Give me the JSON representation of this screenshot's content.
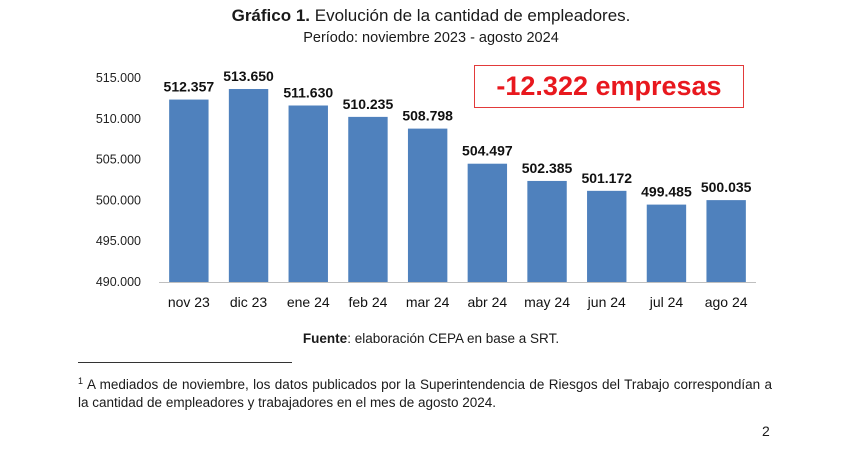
{
  "header": {
    "title_bold": "Gráfico 1.",
    "title_rest": " Evolución de la cantidad de empleadores.",
    "subtitle": "Período: noviembre 2023 - agosto 2024"
  },
  "callout": {
    "text": "-12.322 empresas",
    "color": "#e8181e"
  },
  "chart_data": {
    "type": "bar",
    "categories": [
      "nov 23",
      "dic 23",
      "ene 24",
      "feb 24",
      "mar 24",
      "abr 24",
      "may 24",
      "jun 24",
      "jul 24",
      "ago 24"
    ],
    "values": [
      512357,
      513650,
      511630,
      510235,
      508798,
      504497,
      502385,
      501172,
      499485,
      500035
    ],
    "value_labels": [
      "512.357",
      "513.650",
      "511.630",
      "510.235",
      "508.798",
      "504.497",
      "502.385",
      "501.172",
      "499.485",
      "500.035"
    ],
    "ylim": [
      490000,
      515000
    ],
    "yticks": [
      490000,
      495000,
      500000,
      505000,
      510000,
      515000
    ],
    "ytick_labels": [
      "490.000",
      "495.000",
      "500.000",
      "505.000",
      "510.000",
      "515.000"
    ],
    "bar_color": "#4f81bd",
    "grid": false,
    "legend": "none"
  },
  "source": {
    "label_bold": "Fuente",
    "text": ": elaboración CEPA en base a SRT."
  },
  "footnote": {
    "marker": "1",
    "text": "A mediados de noviembre, los datos publicados por la Superintendencia de Riesgos del Trabajo correspondían a la cantidad de empleadores y trabajadores en el mes de agosto 2024."
  },
  "page_number": "2"
}
